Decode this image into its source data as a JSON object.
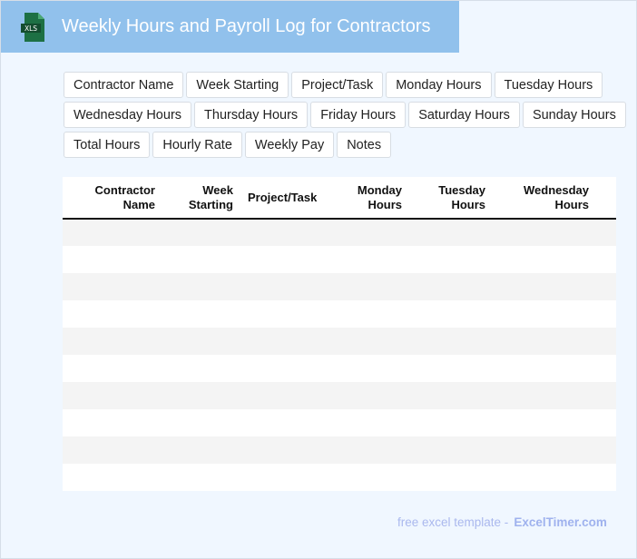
{
  "header": {
    "title": "Weekly Hours and Payroll Log for Contractors",
    "logo_text": "XLS",
    "logo_icon": "excel-file-icon",
    "color": "#91c1ec"
  },
  "fields": [
    "Contractor Name",
    "Week Starting",
    "Project/Task",
    "Monday Hours",
    "Tuesday Hours",
    "Wednesday Hours",
    "Thursday Hours",
    "Friday Hours",
    "Saturday Hours",
    "Sunday Hours",
    "Total Hours",
    "Hourly Rate",
    "Weekly Pay",
    "Notes"
  ],
  "table": {
    "columns": [
      [
        "Contractor",
        "Name"
      ],
      [
        "Week",
        "Starting"
      ],
      [
        "Project/Task",
        ""
      ],
      [
        "Monday",
        "Hours"
      ],
      [
        "Tuesday",
        "Hours"
      ],
      [
        "Wednesday",
        "Hours"
      ]
    ],
    "row_count": 10
  },
  "footer": {
    "text": "free excel template -",
    "brand": "ExcelTimer.com"
  }
}
